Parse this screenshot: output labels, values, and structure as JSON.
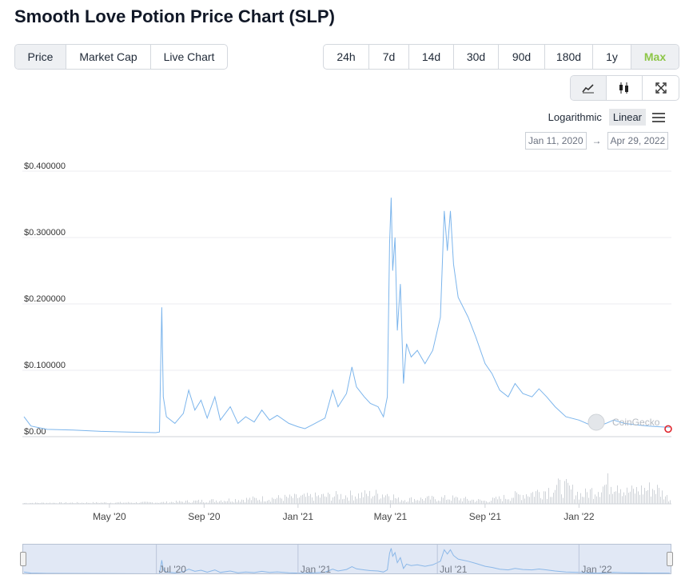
{
  "page": {
    "title": "Smooth Love Potion Price Chart (SLP)"
  },
  "tabs": [
    {
      "label": "Price",
      "active": true
    },
    {
      "label": "Market Cap",
      "active": false
    },
    {
      "label": "Live Chart",
      "active": false
    }
  ],
  "ranges": [
    {
      "label": "24h",
      "active": false
    },
    {
      "label": "7d",
      "active": false
    },
    {
      "label": "14d",
      "active": false
    },
    {
      "label": "30d",
      "active": false
    },
    {
      "label": "90d",
      "active": false
    },
    {
      "label": "180d",
      "active": false
    },
    {
      "label": "1y",
      "active": false
    },
    {
      "label": "Max",
      "active": true
    }
  ],
  "chart_types": [
    {
      "icon": "line-chart-icon",
      "active": true
    },
    {
      "icon": "candlestick-icon",
      "active": false
    },
    {
      "icon": "fullscreen-icon",
      "active": false
    }
  ],
  "scale": {
    "log_label": "Logarithmic",
    "linear_label": "Linear",
    "active": "Linear"
  },
  "date_range": {
    "from": "Jan 11, 2020",
    "arrow": "→",
    "to": "Apr 29, 2022"
  },
  "watermark": "CoinGecko",
  "colors": {
    "line": "#7cb5ec",
    "accent_green": "#8dc647",
    "volume": "#cfd3d8",
    "navigator_fill": "#aabee1"
  },
  "chart_data": {
    "type": "line",
    "title": "",
    "xlabel": "",
    "ylabel": "",
    "ylim": [
      0,
      0.4
    ],
    "x_range": [
      "2020-01-11",
      "2022-04-29"
    ],
    "y_ticks": [
      {
        "value": 0.0,
        "label": "$0.00"
      },
      {
        "value": 0.1,
        "label": "$0.100000"
      },
      {
        "value": 0.2,
        "label": "$0.200000"
      },
      {
        "value": 0.3,
        "label": "$0.300000"
      },
      {
        "value": 0.4,
        "label": "$0.400000"
      }
    ],
    "x_ticks": [
      {
        "date": "2020-05-01",
        "label": "May '20"
      },
      {
        "date": "2020-09-01",
        "label": "Sep '20"
      },
      {
        "date": "2021-01-01",
        "label": "Jan '21"
      },
      {
        "date": "2021-05-01",
        "label": "May '21"
      },
      {
        "date": "2021-09-01",
        "label": "Sep '21"
      },
      {
        "date": "2022-01-01",
        "label": "Jan '22"
      }
    ],
    "navigator_ticks": [
      {
        "date": "2020-07-01",
        "label": "Jul '20"
      },
      {
        "date": "2021-01-01",
        "label": "Jan '21"
      },
      {
        "date": "2021-07-01",
        "label": "Jul '21"
      },
      {
        "date": "2022-01-01",
        "label": "Jan '22"
      }
    ],
    "series": [
      {
        "points": [
          [
            "2020-01-11",
            0.03
          ],
          [
            "2020-01-20",
            0.016
          ],
          [
            "2020-02-10",
            0.011
          ],
          [
            "2020-03-15",
            0.01
          ],
          [
            "2020-04-20",
            0.008
          ],
          [
            "2020-05-25",
            0.007
          ],
          [
            "2020-06-30",
            0.006
          ],
          [
            "2020-07-05",
            0.007
          ],
          [
            "2020-07-08",
            0.195
          ],
          [
            "2020-07-10",
            0.06
          ],
          [
            "2020-07-14",
            0.03
          ],
          [
            "2020-07-25",
            0.02
          ],
          [
            "2020-08-05",
            0.035
          ],
          [
            "2020-08-12",
            0.07
          ],
          [
            "2020-08-20",
            0.04
          ],
          [
            "2020-08-28",
            0.055
          ],
          [
            "2020-09-05",
            0.028
          ],
          [
            "2020-09-15",
            0.06
          ],
          [
            "2020-09-22",
            0.025
          ],
          [
            "2020-10-05",
            0.045
          ],
          [
            "2020-10-15",
            0.02
          ],
          [
            "2020-10-25",
            0.03
          ],
          [
            "2020-11-05",
            0.022
          ],
          [
            "2020-11-15",
            0.04
          ],
          [
            "2020-11-25",
            0.025
          ],
          [
            "2020-12-05",
            0.032
          ],
          [
            "2020-12-20",
            0.02
          ],
          [
            "2021-01-01",
            0.015
          ],
          [
            "2021-01-10",
            0.012
          ],
          [
            "2021-01-20",
            0.018
          ],
          [
            "2021-02-05",
            0.028
          ],
          [
            "2021-02-15",
            0.07
          ],
          [
            "2021-02-22",
            0.045
          ],
          [
            "2021-03-05",
            0.065
          ],
          [
            "2021-03-12",
            0.105
          ],
          [
            "2021-03-18",
            0.075
          ],
          [
            "2021-03-28",
            0.06
          ],
          [
            "2021-04-05",
            0.05
          ],
          [
            "2021-04-15",
            0.045
          ],
          [
            "2021-04-22",
            0.03
          ],
          [
            "2021-04-27",
            0.06
          ],
          [
            "2021-04-30",
            0.29
          ],
          [
            "2021-05-02",
            0.36
          ],
          [
            "2021-05-04",
            0.25
          ],
          [
            "2021-05-07",
            0.3
          ],
          [
            "2021-05-10",
            0.16
          ],
          [
            "2021-05-14",
            0.23
          ],
          [
            "2021-05-18",
            0.08
          ],
          [
            "2021-05-22",
            0.14
          ],
          [
            "2021-05-28",
            0.12
          ],
          [
            "2021-06-05",
            0.13
          ],
          [
            "2021-06-15",
            0.11
          ],
          [
            "2021-06-25",
            0.13
          ],
          [
            "2021-07-05",
            0.18
          ],
          [
            "2021-07-10",
            0.34
          ],
          [
            "2021-07-14",
            0.28
          ],
          [
            "2021-07-18",
            0.34
          ],
          [
            "2021-07-22",
            0.26
          ],
          [
            "2021-07-28",
            0.21
          ],
          [
            "2021-08-10",
            0.18
          ],
          [
            "2021-08-20",
            0.15
          ],
          [
            "2021-09-01",
            0.11
          ],
          [
            "2021-09-10",
            0.095
          ],
          [
            "2021-09-20",
            0.07
          ],
          [
            "2021-10-01",
            0.06
          ],
          [
            "2021-10-10",
            0.08
          ],
          [
            "2021-10-20",
            0.065
          ],
          [
            "2021-11-01",
            0.06
          ],
          [
            "2021-11-10",
            0.072
          ],
          [
            "2021-11-20",
            0.06
          ],
          [
            "2021-12-01",
            0.045
          ],
          [
            "2021-12-15",
            0.03
          ],
          [
            "2022-01-01",
            0.025
          ],
          [
            "2022-01-15",
            0.018
          ],
          [
            "2022-01-25",
            0.015
          ],
          [
            "2022-02-05",
            0.02
          ],
          [
            "2022-02-15",
            0.025
          ],
          [
            "2022-03-01",
            0.02
          ],
          [
            "2022-03-15",
            0.018
          ],
          [
            "2022-04-01",
            0.016
          ],
          [
            "2022-04-15",
            0.015
          ],
          [
            "2022-04-29",
            0.014
          ]
        ]
      }
    ],
    "volume_points": [
      [
        "2020-01-11",
        0.03
      ],
      [
        "2020-07-08",
        0.05
      ],
      [
        "2021-04-30",
        0.35
      ],
      [
        "2021-05-10",
        0.15
      ],
      [
        "2021-07-18",
        0.2
      ],
      [
        "2021-09-01",
        0.1
      ],
      [
        "2021-11-15",
        0.45
      ],
      [
        "2021-12-10",
        0.6
      ],
      [
        "2022-01-05",
        0.3
      ],
      [
        "2022-02-20",
        0.85
      ],
      [
        "2022-03-01",
        0.4
      ],
      [
        "2022-04-10",
        0.55
      ],
      [
        "2022-04-29",
        0.15
      ]
    ],
    "legend": "none",
    "grid": true
  }
}
